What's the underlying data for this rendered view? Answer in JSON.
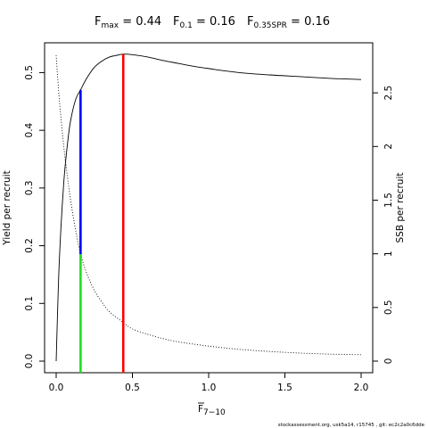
{
  "title": {
    "fmax": {
      "symbol": "F",
      "sub": "max",
      "rest": " = 0.44"
    },
    "f01": {
      "symbol": "F",
      "sub": "0.1",
      "rest": " = 0.16"
    },
    "f035": {
      "symbol": "F",
      "sub": "0.35SPR",
      "rest": " = 0.16"
    }
  },
  "footer": "stockassessment.org, usk5a14, r15745 , git: ec2c2a0c6dde",
  "chart_data": {
    "type": "line",
    "xlabel": {
      "main": "F",
      "sub": "7−10",
      "overbar": true
    },
    "ylabel_left": "Yield per recruit",
    "ylabel_right": "SSB per recruit",
    "xlim": [
      0,
      2
    ],
    "ylim_left": [
      0,
      0.53
    ],
    "ylim_right": [
      0,
      2.85
    ],
    "x_ticks": [
      0,
      0.5,
      1,
      1.5,
      2
    ],
    "x_tick_labels": [
      "0.0",
      "0.5",
      "1.0",
      "1.5",
      "2.0"
    ],
    "y_ticks_left": [
      0,
      0.1,
      0.2,
      0.3,
      0.4,
      0.5
    ],
    "y_tick_labels_left": [
      "0.0",
      "0.1",
      "0.2",
      "0.3",
      "0.4",
      "0.5"
    ],
    "y_ticks_right": [
      0,
      0.5,
      1,
      1.5,
      2,
      2.5
    ],
    "y_tick_labels_right": [
      "0",
      "0.5",
      "1",
      "1.5",
      "2",
      "2.5"
    ],
    "series": [
      {
        "axis": "left",
        "style": "solid",
        "x": [
          0,
          0.02,
          0.05,
          0.08,
          0.1,
          0.13,
          0.16,
          0.2,
          0.25,
          0.3,
          0.35,
          0.4,
          0.44,
          0.5,
          0.6,
          0.7,
          0.8,
          0.9,
          1.0,
          1.2,
          1.4,
          1.6,
          1.8,
          2.0
        ],
        "y": [
          0.0,
          0.17,
          0.31,
          0.39,
          0.424,
          0.455,
          0.47,
          0.49,
          0.509,
          0.52,
          0.527,
          0.53,
          0.532,
          0.531,
          0.527,
          0.521,
          0.516,
          0.511,
          0.507,
          0.5,
          0.496,
          0.493,
          0.49,
          0.488
        ]
      },
      {
        "axis": "right",
        "style": "dotted",
        "x": [
          0,
          0.02,
          0.05,
          0.08,
          0.1,
          0.13,
          0.16,
          0.2,
          0.25,
          0.3,
          0.35,
          0.44,
          0.5,
          0.6,
          0.7,
          0.8,
          1.0,
          1.2,
          1.4,
          1.6,
          1.8,
          2.0
        ],
        "y": [
          2.85,
          2.45,
          2.0,
          1.65,
          1.45,
          1.2,
          1.0,
          0.82,
          0.66,
          0.55,
          0.46,
          0.36,
          0.3,
          0.25,
          0.21,
          0.18,
          0.14,
          0.11,
          0.09,
          0.075,
          0.065,
          0.06
        ]
      }
    ],
    "reference_lines": [
      {
        "label": "Fmax",
        "x": 0.44,
        "y_from": 0,
        "y_to": 0.532,
        "color": "#ff0000"
      },
      {
        "label": "F0.1",
        "x": 0.16,
        "y_from": 0.185,
        "y_to": 0.47,
        "color": "#0000ff"
      },
      {
        "label": "F0.35SPR",
        "x": 0.16,
        "y_from": 0,
        "y_to": 0.185,
        "color": "#22dd22"
      }
    ],
    "grid": false,
    "legend": "none"
  }
}
